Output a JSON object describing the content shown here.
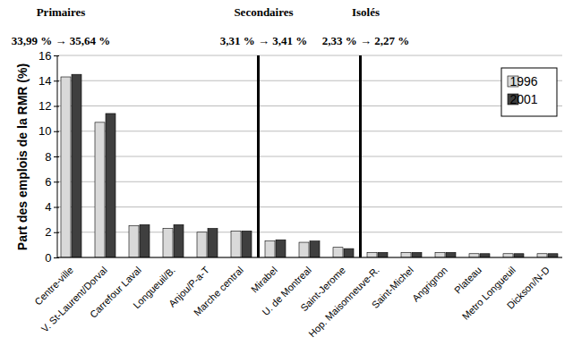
{
  "chart_data": {
    "type": "bar",
    "y_label": "Part des emplois de la RMR (%)",
    "categories": [
      "Centre-ville",
      "V. St-Laurent/Dorval",
      "Carrefour Laval",
      "Longueuil/B.",
      "Anjou/P-a-T",
      "Marche central",
      "Mirabel",
      "U. de Montreal",
      "Saint-Jerome",
      "Hop. Maisonneuve-R.",
      "Saint-Michel",
      "Angrignon",
      "Plateau",
      "Metro Longueuil",
      "Dickson/N-D"
    ],
    "series": [
      {
        "name": "1996",
        "color": "#d9d9d9",
        "values": [
          14.3,
          10.7,
          2.5,
          2.3,
          2.0,
          2.1,
          1.3,
          1.2,
          0.8,
          0.4,
          0.4,
          0.4,
          0.3,
          0.3,
          0.3
        ]
      },
      {
        "name": "2001",
        "color": "#3f3f3f",
        "values": [
          14.5,
          11.4,
          2.6,
          2.6,
          2.3,
          2.1,
          1.4,
          1.3,
          0.7,
          0.4,
          0.4,
          0.4,
          0.3,
          0.3,
          0.3
        ]
      }
    ],
    "annotations": [
      {
        "title": "Primaires",
        "text": "33,99 % → 35,64 %",
        "categories": [
          "Centre-ville",
          "V. St-Laurent/Dorval",
          "Carrefour Laval",
          "Longueuil/B.",
          "Anjou/P-a-T",
          "Marche central"
        ]
      },
      {
        "title": "Secondaires",
        "text": "3,31 % → 3,41 %",
        "categories": [
          "Mirabel",
          "U. de Montreal",
          "Saint-Jerome"
        ]
      },
      {
        "title": "Isolés",
        "text": "2,33 % → 2,27 %",
        "categories": [
          "Hop. Maisonneuve-R.",
          "Saint-Michel",
          "Angrignon",
          "Plateau",
          "Metro Longueuil",
          "Dickson/N-D"
        ]
      }
    ],
    "ylim": [
      0,
      16
    ],
    "yticks": [
      0,
      2,
      4,
      6,
      8,
      10,
      12,
      14,
      16
    ],
    "grid": true,
    "legend": "upper right"
  }
}
